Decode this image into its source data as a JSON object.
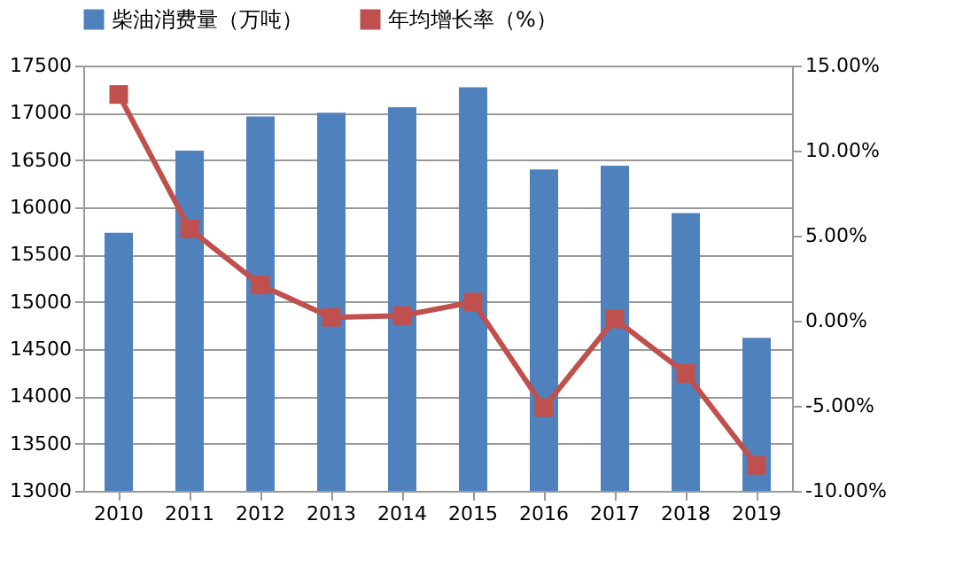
{
  "chart_data": {
    "type": "bar",
    "categories": [
      "2010",
      "2011",
      "2012",
      "2013",
      "2014",
      "2015",
      "2016",
      "2017",
      "2018",
      "2019"
    ],
    "series": [
      {
        "name": "柴油消费量（万吨）",
        "color": "#4f81bd",
        "values": [
          15730,
          16600,
          16960,
          17000,
          17060,
          17270,
          16400,
          16440,
          15940,
          14620
        ]
      },
      {
        "name": "年均增长率（%）",
        "color": "#c0504d",
        "type": "line",
        "axis": "y2",
        "marker": "square",
        "values": [
          13.3,
          5.4,
          2.1,
          0.2,
          0.3,
          1.1,
          -5.1,
          0.1,
          -3.1,
          -8.5
        ]
      }
    ],
    "ylim": [
      13000,
      17500
    ],
    "yticks": [
      13000,
      13500,
      14000,
      14500,
      15000,
      15500,
      16000,
      16500,
      17000,
      17500
    ],
    "y2lim": [
      -10,
      15
    ],
    "y2ticks": [
      {
        "value": -10,
        "label": "-10.00%"
      },
      {
        "value": -5,
        "label": "-5.00%"
      },
      {
        "value": 0,
        "label": "0.00%"
      },
      {
        "value": 5,
        "label": "5.00%"
      },
      {
        "value": 10,
        "label": "10.00%"
      },
      {
        "value": 15,
        "label": "15.00%"
      }
    ],
    "grid": "y",
    "legend": "top"
  }
}
